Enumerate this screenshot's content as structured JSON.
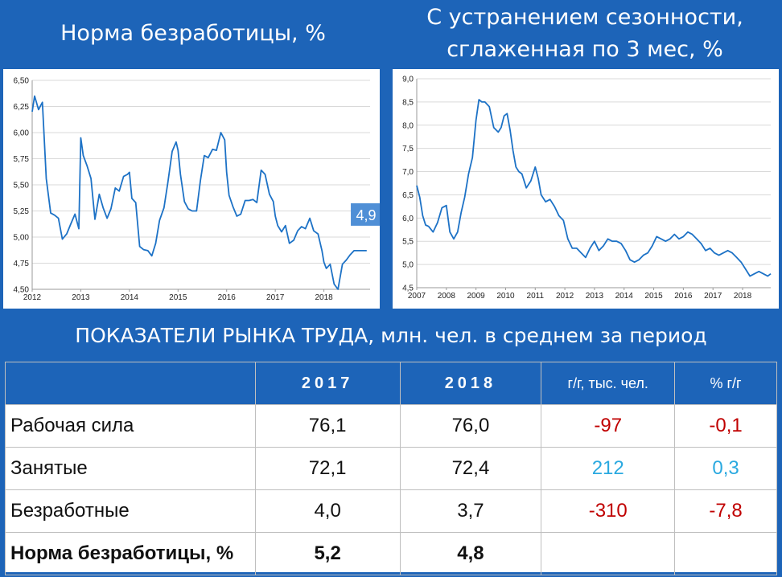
{
  "left_title": "Норма безработицы, %",
  "right_title": "С устранением сезонности,\nсглаженная по 3 мес, %",
  "chart_data": [
    {
      "type": "line",
      "title": "Норма безработицы, %",
      "ylim": [
        4.5,
        6.5
      ],
      "xlim": [
        2012.0,
        2018.95
      ],
      "y_ticks": [
        "6,50",
        "6,25",
        "6,00",
        "5,75",
        "5,50",
        "5,25",
        "5,00",
        "4,75",
        "4,50"
      ],
      "x_ticks": [
        "2012",
        "2013",
        "2014",
        "2015",
        "2016",
        "2017",
        "2018"
      ],
      "grid": true,
      "annotation": "4,9",
      "series": [
        {
          "x": [
            2012.0,
            2012.05,
            2012.13,
            2012.21,
            2012.29,
            2012.38,
            2012.46,
            2012.54,
            2012.62,
            2012.71,
            2012.79,
            2012.88,
            2012.96,
            2013.0,
            2013.05,
            2013.13,
            2013.21,
            2013.29,
            2013.38,
            2013.46,
            2013.54,
            2013.62,
            2013.71,
            2013.79,
            2013.88,
            2013.96,
            2014.0,
            2014.05,
            2014.13,
            2014.21,
            2014.29,
            2014.38,
            2014.46,
            2014.54,
            2014.62,
            2014.71,
            2014.79,
            2014.88,
            2014.96,
            2015.0,
            2015.05,
            2015.13,
            2015.21,
            2015.29,
            2015.38,
            2015.46,
            2015.54,
            2015.62,
            2015.71,
            2015.79,
            2015.88,
            2015.96,
            2016.0,
            2016.05,
            2016.13,
            2016.21,
            2016.29,
            2016.38,
            2016.46,
            2016.54,
            2016.62,
            2016.71,
            2016.79,
            2016.88,
            2016.96,
            2017.0,
            2017.05,
            2017.13,
            2017.21,
            2017.29,
            2017.38,
            2017.46,
            2017.54,
            2017.62,
            2017.71,
            2017.79,
            2017.88,
            2017.96,
            2018.0,
            2018.05,
            2018.13,
            2018.21,
            2018.29,
            2018.38,
            2018.46,
            2018.54,
            2018.62,
            2018.71,
            2018.79,
            2018.88
          ],
          "y": [
            6.2,
            6.35,
            6.22,
            6.29,
            5.56,
            5.23,
            5.21,
            5.18,
            4.98,
            5.03,
            5.12,
            5.22,
            5.08,
            5.95,
            5.78,
            5.68,
            5.56,
            5.17,
            5.41,
            5.28,
            5.18,
            5.27,
            5.47,
            5.44,
            5.58,
            5.6,
            5.62,
            5.37,
            5.33,
            4.91,
            4.88,
            4.87,
            4.82,
            4.94,
            5.16,
            5.28,
            5.52,
            5.82,
            5.91,
            5.83,
            5.6,
            5.34,
            5.27,
            5.25,
            5.25,
            5.54,
            5.78,
            5.76,
            5.84,
            5.83,
            6.0,
            5.93,
            5.62,
            5.4,
            5.29,
            5.2,
            5.22,
            5.35,
            5.35,
            5.36,
            5.33,
            5.64,
            5.6,
            5.41,
            5.34,
            5.2,
            5.11,
            5.05,
            5.11,
            4.94,
            4.97,
            5.06,
            5.1,
            5.08,
            5.18,
            5.06,
            5.03,
            4.87,
            4.76,
            4.7,
            4.74,
            4.55,
            4.5,
            4.74,
            4.78,
            4.83,
            4.87,
            4.87,
            4.87,
            4.87
          ]
        }
      ]
    },
    {
      "type": "line",
      "title": "С устранением сезонности, сглаженная по 3 мес, %",
      "ylim": [
        4.5,
        9.0
      ],
      "xlim": [
        2007.0,
        2018.95
      ],
      "y_ticks": [
        "9,0",
        "8,5",
        "8,0",
        "7,5",
        "7,0",
        "6,5",
        "6,0",
        "5,5",
        "5,0",
        "4,5"
      ],
      "x_ticks": [
        "2007",
        "2008",
        "2009",
        "2010",
        "2011",
        "2012",
        "2013",
        "2014",
        "2015",
        "2016",
        "2017",
        "2018"
      ],
      "grid": true,
      "series": [
        {
          "x": [
            2007.0,
            2007.1,
            2007.2,
            2007.3,
            2007.4,
            2007.55,
            2007.7,
            2007.85,
            2008.0,
            2008.12,
            2008.25,
            2008.38,
            2008.5,
            2008.62,
            2008.75,
            2008.88,
            2009.0,
            2009.1,
            2009.2,
            2009.3,
            2009.45,
            2009.6,
            2009.75,
            2009.85,
            2009.95,
            2010.05,
            2010.15,
            2010.25,
            2010.35,
            2010.45,
            2010.55,
            2010.7,
            2010.85,
            2011.0,
            2011.1,
            2011.2,
            2011.35,
            2011.5,
            2011.65,
            2011.8,
            2011.95,
            2012.1,
            2012.25,
            2012.4,
            2012.55,
            2012.7,
            2012.85,
            2013.0,
            2013.15,
            2013.3,
            2013.45,
            2013.6,
            2013.75,
            2013.9,
            2014.05,
            2014.2,
            2014.35,
            2014.5,
            2014.65,
            2014.8,
            2014.95,
            2015.1,
            2015.25,
            2015.4,
            2015.55,
            2015.7,
            2015.85,
            2016.0,
            2016.15,
            2016.3,
            2016.45,
            2016.6,
            2016.75,
            2016.9,
            2017.05,
            2017.2,
            2017.35,
            2017.5,
            2017.65,
            2017.8,
            2017.95,
            2018.1,
            2018.25,
            2018.4,
            2018.55,
            2018.7,
            2018.85,
            2018.95
          ],
          "y": [
            6.7,
            6.45,
            6.05,
            5.85,
            5.82,
            5.7,
            5.9,
            6.22,
            6.27,
            5.7,
            5.55,
            5.7,
            6.12,
            6.45,
            6.95,
            7.3,
            8.1,
            8.55,
            8.5,
            8.5,
            8.4,
            7.95,
            7.85,
            7.95,
            8.2,
            8.25,
            7.9,
            7.45,
            7.1,
            7.0,
            6.95,
            6.65,
            6.8,
            7.1,
            6.85,
            6.5,
            6.35,
            6.4,
            6.25,
            6.05,
            5.95,
            5.55,
            5.35,
            5.35,
            5.25,
            5.15,
            5.35,
            5.5,
            5.3,
            5.4,
            5.55,
            5.5,
            5.5,
            5.45,
            5.3,
            5.1,
            5.05,
            5.1,
            5.2,
            5.25,
            5.4,
            5.6,
            5.55,
            5.5,
            5.55,
            5.65,
            5.55,
            5.6,
            5.7,
            5.65,
            5.55,
            5.45,
            5.3,
            5.35,
            5.25,
            5.2,
            5.25,
            5.3,
            5.25,
            5.15,
            5.05,
            4.9,
            4.75,
            4.8,
            4.85,
            4.8,
            4.75,
            4.8
          ]
        }
      ]
    }
  ],
  "table": {
    "title": "ПОКАЗАТЕЛИ РЫНКА ТРУДА, млн. чел. в среднем за период",
    "headers": [
      "",
      "2017",
      "2018",
      "г/г, тыс. чел.",
      "% г/г"
    ],
    "rows": [
      {
        "name": "Рабочая сила",
        "y2017": "76,1",
        "y2018": "76,0",
        "yoy_abs": "-97",
        "yoy_pct": "-0,1",
        "sign": "neg"
      },
      {
        "name": "Занятые",
        "y2017": "72,1",
        "y2018": "72,4",
        "yoy_abs": "212",
        "yoy_pct": "0,3",
        "sign": "pos"
      },
      {
        "name": "Безработные",
        "y2017": "4,0",
        "y2018": "3,7",
        "yoy_abs": "-310",
        "yoy_pct": "-7,8",
        "sign": "neg"
      },
      {
        "name": "Норма безработицы, %",
        "y2017": "5,2",
        "y2018": "4,8",
        "yoy_abs": "",
        "yoy_pct": "",
        "sign": "bold"
      }
    ]
  },
  "colors": {
    "background": "#1d64b8",
    "series": "#1d72c6",
    "annotation_bg": "#4f8fd6",
    "negative": "#c00000",
    "positive": "#2aa9e0"
  }
}
